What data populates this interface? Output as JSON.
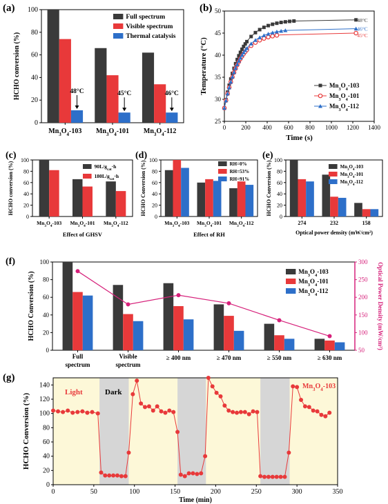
{
  "chart_data": [
    {
      "panel": "(a)",
      "type": "bar",
      "ylabel": "HCHO conversion (%)",
      "ylim": [
        0,
        100
      ],
      "yticks": [
        "0",
        "20",
        "40",
        "60",
        "80",
        "100"
      ],
      "categories": [
        "Mn3O4-103",
        "Mn3O4-101",
        "Mn3O4-112"
      ],
      "series": [
        {
          "name": "Full spectrum",
          "color": "#3a3a3a",
          "values": [
            100,
            66,
            62
          ]
        },
        {
          "name": "Visible spectrum",
          "color": "#e8393a",
          "values": [
            74,
            42,
            34
          ]
        },
        {
          "name": "Thermal catalysis",
          "color": "#2d6fc9",
          "values": [
            11,
            9,
            9
          ]
        }
      ],
      "annotations": [
        "48°C",
        "45°C",
        "46°C"
      ],
      "legend": "top-right"
    },
    {
      "panel": "(b)",
      "type": "line",
      "xlabel": "Time (s)",
      "ylabel": "Temperature (°C)",
      "xlim": [
        0,
        1400
      ],
      "ylim": [
        25,
        50
      ],
      "xticks": [
        "0",
        "200",
        "400",
        "600",
        "800",
        "1000",
        "1200",
        "1400"
      ],
      "yticks": [
        "25",
        "30",
        "35",
        "40",
        "45",
        "50"
      ],
      "series": [
        {
          "name": "Mn3O4-103",
          "color": "#3a3a3a",
          "marker": "square",
          "plateau": 48,
          "tau": 150,
          "markers_end": 650,
          "line_end": 1230
        },
        {
          "name": "Mn3O4-101",
          "color": "#e8393a",
          "marker": "circle",
          "plateau": 45,
          "tau": 140,
          "markers_end": 520,
          "line_end": 1230
        },
        {
          "name": "Mn3O4-112",
          "color": "#2d6fc9",
          "marker": "triangle",
          "plateau": 46,
          "tau": 150,
          "markers_end": 570,
          "line_end": 1230
        }
      ],
      "end_labels": [
        "48°C",
        "46°C",
        "45°C"
      ],
      "legend": "bottom-right"
    },
    {
      "panel": "(c)",
      "type": "bar",
      "xlabel": "Effect of GHSV",
      "ylabel": "HCHO conversion  (%)",
      "ylim": [
        0,
        100
      ],
      "yticks": [
        "0",
        "20",
        "40",
        "60",
        "80",
        "100"
      ],
      "categories": [
        "Mn3O4-103",
        "Mn3O4-101",
        "Mn3O4-112"
      ],
      "series": [
        {
          "name": "90L/gcat·h",
          "color": "#3a3a3a",
          "values": [
            100,
            66,
            62
          ]
        },
        {
          "name": "180L/gcat·h",
          "color": "#e8393a",
          "values": [
            82,
            53,
            45
          ]
        }
      ],
      "legend": "top-right"
    },
    {
      "panel": "(d)",
      "type": "bar",
      "xlabel": "Effect of RH",
      "ylabel": "HCHO Conversion (%)",
      "ylim": [
        0,
        100
      ],
      "yticks": [
        "0",
        "20",
        "40",
        "60",
        "80",
        "100"
      ],
      "categories": [
        "Mn3O4-103",
        "Mn3O4-101",
        "Mn3O4-112"
      ],
      "series": [
        {
          "name": "RH=0%",
          "color": "#3a3a3a",
          "values": [
            82,
            60,
            50
          ]
        },
        {
          "name": "RH=53%",
          "color": "#e8393a",
          "values": [
            100,
            66,
            62
          ]
        },
        {
          "name": "RH=91%",
          "color": "#2d6fc9",
          "values": [
            86,
            63,
            56
          ]
        }
      ],
      "legend": "top-right"
    },
    {
      "panel": "(e)",
      "type": "bar",
      "xlabel": "Optical power density (mW/cm²)",
      "ylabel": "HCHO Conversion (%)",
      "ylim": [
        0,
        100
      ],
      "yticks": [
        "0",
        "20",
        "40",
        "60",
        "80",
        "100"
      ],
      "categories": [
        "274",
        "232",
        "158"
      ],
      "series": [
        {
          "name": "Mn3O4-103",
          "color": "#3a3a3a",
          "values": [
            100,
            74,
            24
          ]
        },
        {
          "name": "Mn3O4-101",
          "color": "#e8393a",
          "values": [
            66,
            35,
            13
          ]
        },
        {
          "name": "Mn3O4-112",
          "color": "#2d6fc9",
          "values": [
            62,
            33,
            13
          ]
        }
      ],
      "legend": "top-right"
    },
    {
      "panel": "(f)",
      "type": "bar",
      "ylabel": "HCHO Conversion (%)",
      "ylabel_right": "Optical Power Density (mW/cm²)",
      "ylim": [
        0,
        100
      ],
      "ylim_right": [
        50,
        300
      ],
      "yticks": [
        "0",
        "20",
        "40",
        "60",
        "80",
        "100"
      ],
      "yticks_right": [
        "50",
        "100",
        "150",
        "200",
        "250",
        "300"
      ],
      "categories": [
        "Full spectrum",
        "Visible spectrum",
        "≥ 400 nm",
        "≥ 470 nm",
        "≥ 550 nm",
        "≥ 630 nm"
      ],
      "series": [
        {
          "name": "Mn3O4-103",
          "color": "#3a3a3a",
          "values": [
            100,
            74,
            76,
            52,
            30,
            13
          ]
        },
        {
          "name": "Mn3O4-101",
          "color": "#e8393a",
          "values": [
            66,
            41,
            50,
            39,
            17,
            11
          ]
        },
        {
          "name": "Mn3O4-112",
          "color": "#2d6fc9",
          "values": [
            62,
            33,
            35,
            22,
            13,
            9
          ]
        }
      ],
      "power_density": {
        "color": "#d6207a",
        "values": [
          274,
          180,
          206,
          183,
          135,
          90
        ]
      },
      "legend": "top-right"
    },
    {
      "panel": "(g)",
      "type": "line",
      "xlabel": "Time (min)",
      "ylabel": "HCHO Conversion (%)",
      "xlim": [
        0,
        350
      ],
      "ylim": [
        0,
        150
      ],
      "xticks": [
        "0",
        "50",
        "100",
        "150",
        "200",
        "250",
        "300",
        "350"
      ],
      "yticks": [
        "0",
        "20",
        "40",
        "60",
        "80",
        "100",
        "120",
        "140"
      ],
      "labels": {
        "light": "Light",
        "dark": "Dark",
        "series": "Mn3O4-103"
      },
      "dark_periods": [
        [
          57,
          93
        ],
        [
          153,
          188
        ],
        [
          255,
          291
        ]
      ],
      "series": [
        {
          "name": "Mn3O4-103",
          "color": "#e8393a",
          "x": [
            0,
            6,
            12,
            18,
            24,
            30,
            36,
            42,
            48,
            55,
            59,
            64,
            69,
            74,
            79,
            84,
            89,
            93,
            98,
            103,
            108,
            113,
            118,
            123,
            128,
            133,
            138,
            143,
            148,
            153,
            157,
            162,
            167,
            172,
            177,
            182,
            187,
            191,
            196,
            201,
            206,
            211,
            216,
            221,
            226,
            231,
            236,
            241,
            246,
            251,
            255,
            260,
            265,
            270,
            275,
            280,
            285,
            290,
            295,
            300,
            305,
            310,
            315,
            320,
            325,
            330,
            335,
            340
          ],
          "y": [
            104,
            103,
            102,
            104,
            101,
            102,
            103,
            101,
            102,
            100,
            17,
            13,
            13,
            13,
            13,
            12,
            12,
            45,
            127,
            146,
            114,
            109,
            110,
            104,
            110,
            103,
            101,
            104,
            102,
            74,
            14,
            12,
            16,
            16,
            15,
            16,
            40,
            150,
            138,
            129,
            124,
            111,
            104,
            102,
            101,
            102,
            102,
            99,
            103,
            102,
            12,
            11,
            11,
            11,
            11,
            11,
            11,
            45,
            138,
            137,
            119,
            110,
            109,
            104,
            103,
            98,
            96,
            101
          ]
        }
      ],
      "background": {
        "light": "#fdf8d8",
        "dark": "#d6d6d6"
      }
    }
  ]
}
